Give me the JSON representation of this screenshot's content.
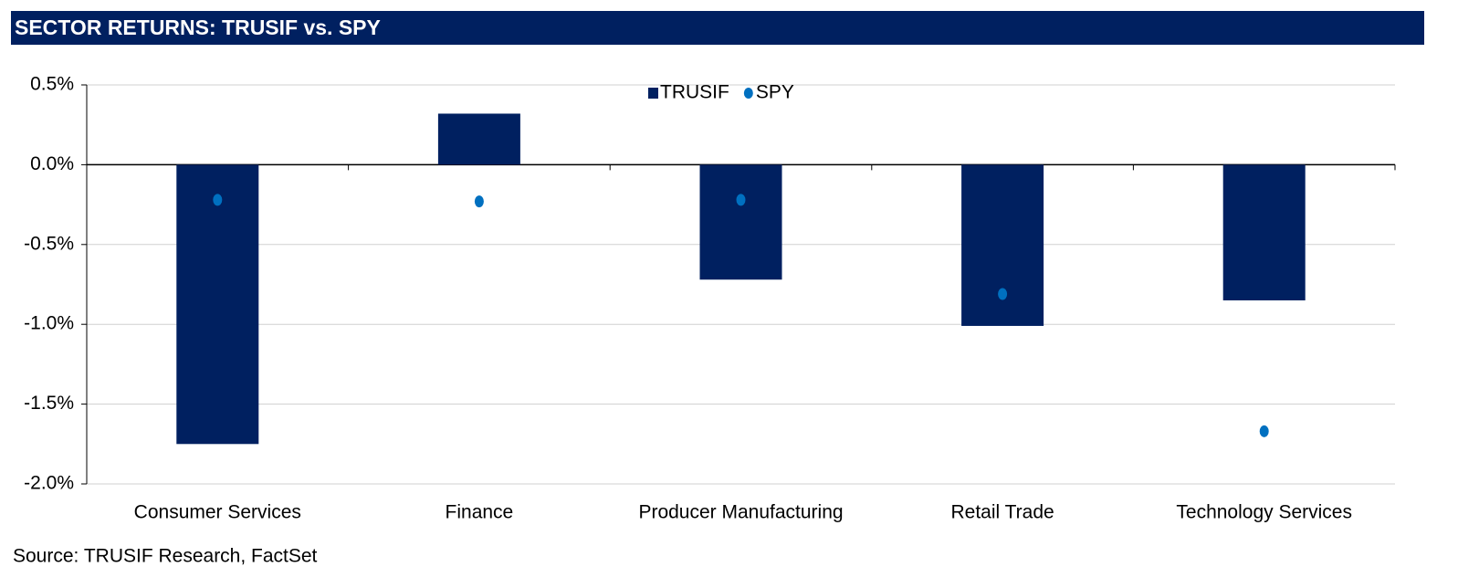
{
  "chart_data": {
    "type": "bar",
    "title": "SECTOR RETURNS: TRUSIF vs. SPY",
    "source": "Source: TRUSIF Research, FactSet",
    "categories": [
      "Consumer Services",
      "Finance",
      "Producer Manufacturing",
      "Retail Trade",
      "Technology Services"
    ],
    "series": [
      {
        "name": "TRUSIF",
        "type": "bar",
        "color": "#002060",
        "values": [
          -1.75,
          0.32,
          -0.72,
          -1.01,
          -0.85
        ]
      },
      {
        "name": "SPY",
        "type": "scatter",
        "color": "#0070c0",
        "values": [
          -0.22,
          -0.23,
          -0.22,
          -0.81,
          -1.67
        ]
      }
    ],
    "ylim": [
      -2.0,
      0.5
    ],
    "yticks": [
      {
        "value": 0.5,
        "label": "0.5%"
      },
      {
        "value": 0.0,
        "label": "0.0%"
      },
      {
        "value": -0.5,
        "label": "-0.5%"
      },
      {
        "value": -1.0,
        "label": "-1.0%"
      },
      {
        "value": -1.5,
        "label": "-1.5%"
      },
      {
        "value": -2.0,
        "label": "-2.0%"
      }
    ],
    "grid": true,
    "legend": "top"
  }
}
